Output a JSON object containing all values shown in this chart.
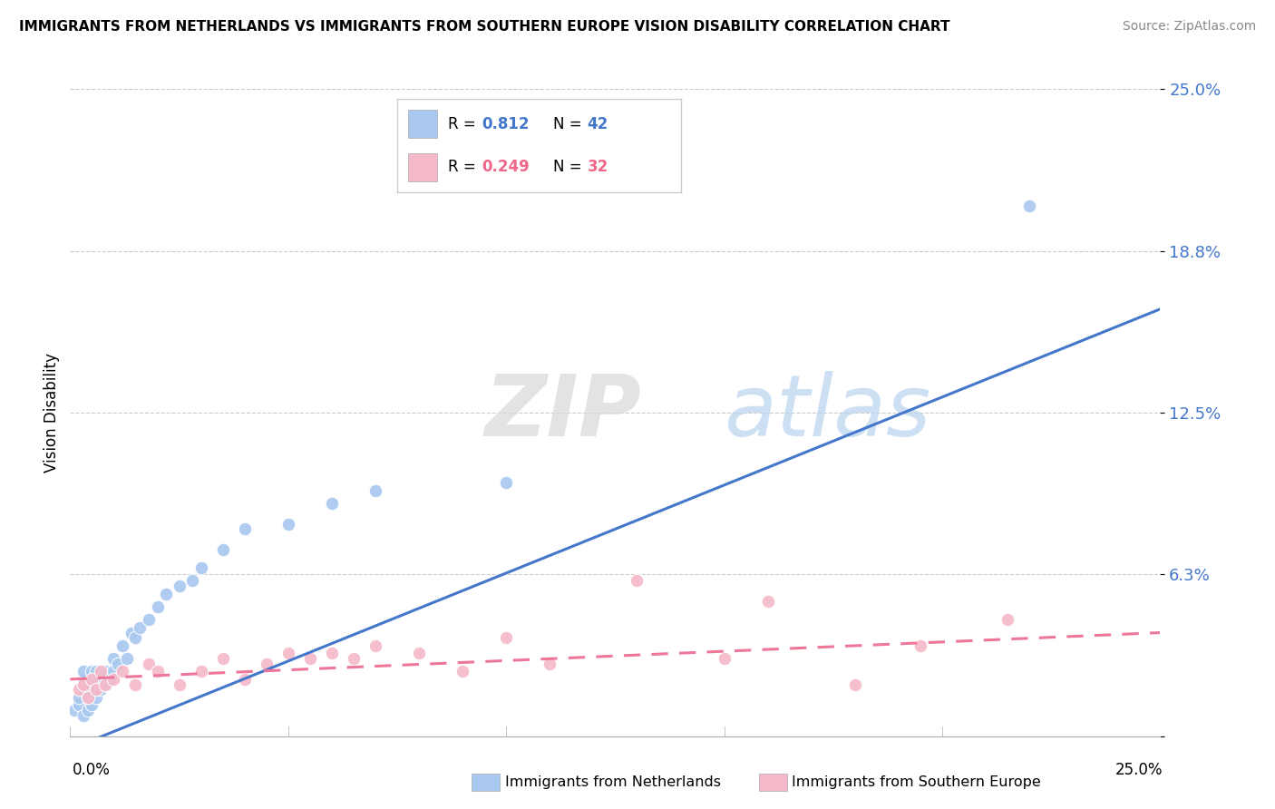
{
  "title": "IMMIGRANTS FROM NETHERLANDS VS IMMIGRANTS FROM SOUTHERN EUROPE VISION DISABILITY CORRELATION CHART",
  "source": "Source: ZipAtlas.com",
  "ylabel": "Vision Disability",
  "ytick_vals": [
    0.0,
    0.0625,
    0.125,
    0.1875,
    0.25
  ],
  "ytick_labels": [
    "",
    "6.3%",
    "12.5%",
    "18.8%",
    "25.0%"
  ],
  "xlim": [
    0.0,
    0.25
  ],
  "ylim": [
    0.0,
    0.25
  ],
  "legend_r1": "0.812",
  "legend_n1": "42",
  "legend_r2": "0.249",
  "legend_n2": "32",
  "color_blue": "#a8c8f0",
  "color_pink": "#f5b8c8",
  "color_blue_line": "#4477cc",
  "color_pink_line": "#ee7799",
  "watermark_zip": "ZIP",
  "watermark_atlas": "atlas",
  "nl_line_x0": 0.0,
  "nl_line_y0": -0.005,
  "nl_line_x1": 0.25,
  "nl_line_y1": 0.165,
  "se_line_x0": 0.0,
  "se_line_y0": 0.022,
  "se_line_x1": 0.25,
  "se_line_y1": 0.04,
  "netherlands_x": [
    0.001,
    0.002,
    0.002,
    0.003,
    0.003,
    0.003,
    0.003,
    0.004,
    0.004,
    0.004,
    0.005,
    0.005,
    0.005,
    0.006,
    0.006,
    0.006,
    0.007,
    0.007,
    0.008,
    0.008,
    0.009,
    0.01,
    0.01,
    0.011,
    0.012,
    0.013,
    0.014,
    0.015,
    0.016,
    0.018,
    0.02,
    0.022,
    0.025,
    0.028,
    0.03,
    0.035,
    0.04,
    0.05,
    0.06,
    0.07,
    0.1,
    0.22
  ],
  "netherlands_y": [
    0.01,
    0.012,
    0.015,
    0.008,
    0.018,
    0.022,
    0.025,
    0.01,
    0.015,
    0.02,
    0.012,
    0.018,
    0.025,
    0.015,
    0.02,
    0.025,
    0.018,
    0.022,
    0.02,
    0.025,
    0.022,
    0.025,
    0.03,
    0.028,
    0.035,
    0.03,
    0.04,
    0.038,
    0.042,
    0.045,
    0.05,
    0.055,
    0.058,
    0.06,
    0.065,
    0.072,
    0.08,
    0.082,
    0.09,
    0.095,
    0.098,
    0.205
  ],
  "southern_europe_x": [
    0.002,
    0.003,
    0.004,
    0.005,
    0.006,
    0.007,
    0.008,
    0.01,
    0.012,
    0.015,
    0.018,
    0.02,
    0.025,
    0.03,
    0.035,
    0.04,
    0.045,
    0.05,
    0.055,
    0.06,
    0.065,
    0.07,
    0.08,
    0.09,
    0.1,
    0.11,
    0.13,
    0.15,
    0.16,
    0.18,
    0.195,
    0.215
  ],
  "southern_europe_y": [
    0.018,
    0.02,
    0.015,
    0.022,
    0.018,
    0.025,
    0.02,
    0.022,
    0.025,
    0.02,
    0.028,
    0.025,
    0.02,
    0.025,
    0.03,
    0.022,
    0.028,
    0.032,
    0.03,
    0.032,
    0.03,
    0.035,
    0.032,
    0.025,
    0.038,
    0.028,
    0.06,
    0.03,
    0.052,
    0.02,
    0.035,
    0.045
  ]
}
